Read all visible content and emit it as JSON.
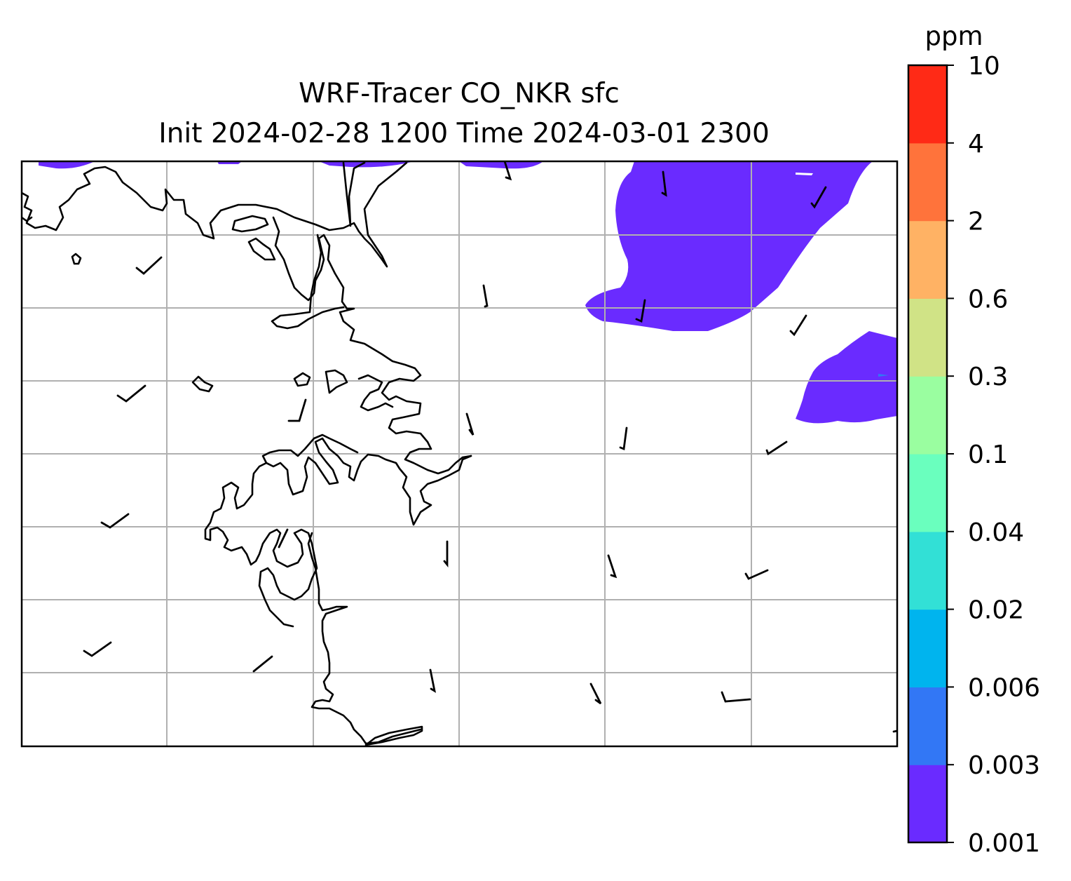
{
  "title": {
    "line1": "WRF-Tracer CO_NKR sfc",
    "line2": "Init 2024-02-28 1200 Time 2024-03-01 2300"
  },
  "colorbar": {
    "unit": "ppm",
    "levels": [
      "0.001",
      "0.003",
      "0.006",
      "0.02",
      "0.04",
      "0.1",
      "0.3",
      "0.6",
      "2",
      "4",
      "10"
    ],
    "colors": [
      "#6a2bff",
      "#3277f5",
      "#00b4ee",
      "#32e0d6",
      "#6affbe",
      "#9afea0",
      "#d0e386",
      "#ffb264",
      "#ff733b",
      "#ff2a16"
    ]
  },
  "map": {
    "gridlines": true,
    "field": "CO_NKR surface tracer concentration",
    "filled_level_color": "#6a2bff",
    "coastline_color": "#000000",
    "wind_barbs": true
  }
}
